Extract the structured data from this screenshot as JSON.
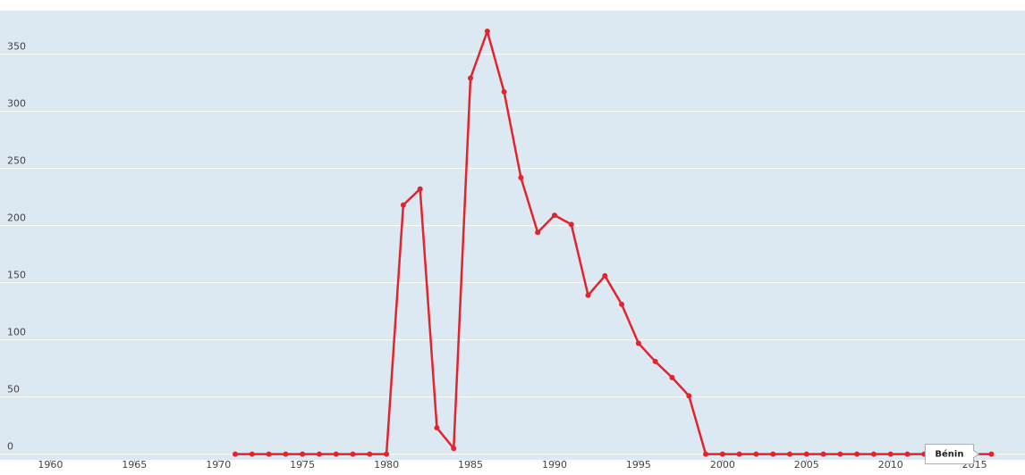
{
  "chart_data": {
    "type": "line",
    "x": [
      1971,
      1972,
      1973,
      1974,
      1975,
      1976,
      1977,
      1978,
      1979,
      1980,
      1981,
      1982,
      1983,
      1984,
      1985,
      1986,
      1987,
      1988,
      1989,
      1990,
      1991,
      1992,
      1993,
      1994,
      1995,
      1996,
      1997,
      1998,
      1999,
      2000,
      2001,
      2002,
      2003,
      2004,
      2005,
      2006,
      2007,
      2008,
      2009,
      2010,
      2011,
      2012,
      2013,
      2014,
      2015,
      2016
    ],
    "series": [
      {
        "name": "Bénin",
        "color": "#e0252e",
        "values": [
          0,
          0,
          0,
          0,
          0,
          0,
          0,
          0,
          0,
          0,
          218,
          232,
          23,
          5,
          329,
          370,
          317,
          242,
          194,
          209,
          201,
          139,
          156,
          131,
          97,
          81,
          67,
          51,
          0,
          0,
          0,
          0,
          0,
          0,
          0,
          0,
          0,
          0,
          0,
          0,
          0,
          0,
          0,
          0,
          0,
          0
        ]
      }
    ],
    "xlim": [
      1957,
      2018
    ],
    "xticks": [
      1960,
      1965,
      1970,
      1975,
      1980,
      1985,
      1990,
      1995,
      2000,
      2005,
      2010,
      2015
    ],
    "ylim": [
      -5,
      388
    ],
    "yticks": [
      0,
      50,
      100,
      150,
      200,
      250,
      300,
      350
    ],
    "grid": true
  }
}
